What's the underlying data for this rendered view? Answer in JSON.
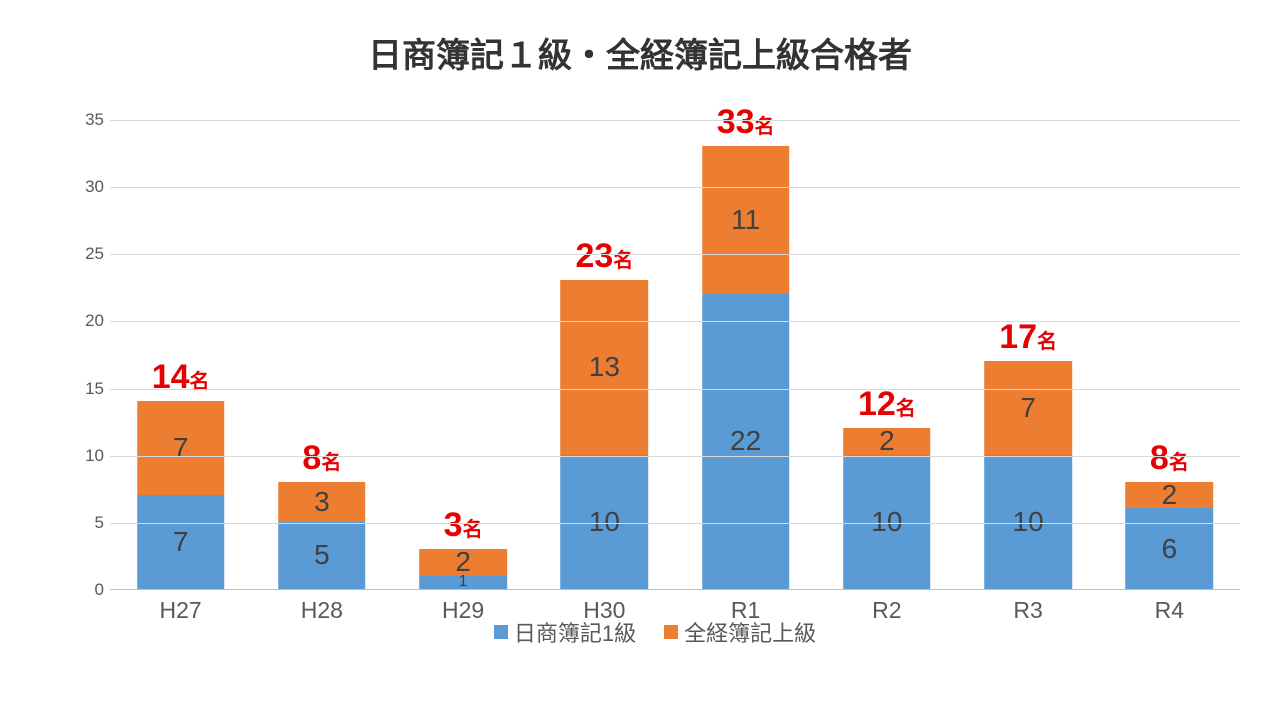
{
  "title": "日商簿記１級・全経簿記上級合格者",
  "title_fontsize": 34,
  "title_color": "#333333",
  "chart": {
    "type": "bar-stacked",
    "categories": [
      "H27",
      "H28",
      "H29",
      "H30",
      "R1",
      "R2",
      "R3",
      "R4"
    ],
    "series": [
      {
        "name": "日商簿記1級",
        "color": "#5b9bd5",
        "values": [
          7,
          5,
          1,
          10,
          22,
          10,
          10,
          6
        ]
      },
      {
        "name": "全経簿記上級",
        "color": "#ed7d31",
        "values": [
          7,
          3,
          2,
          13,
          11,
          2,
          7,
          2
        ]
      }
    ],
    "totals": [
      14,
      8,
      3,
      23,
      33,
      12,
      17,
      8
    ],
    "total_suffix": "名",
    "total_color": "#e60000",
    "total_num_fontsize": 34,
    "total_suf_fontsize": 20,
    "ylim": [
      0,
      35
    ],
    "ytick_step": 5,
    "xtick_fontsize": 23,
    "ytick_fontsize": 17,
    "ytick_color": "#595959",
    "grid_color": "#d9d9d9",
    "seg_label_color": "#404040",
    "seg_label_fontsize": 28,
    "bar_width_ratio": 0.62,
    "background_color": "#ffffff",
    "legend_fontsize": 22
  }
}
